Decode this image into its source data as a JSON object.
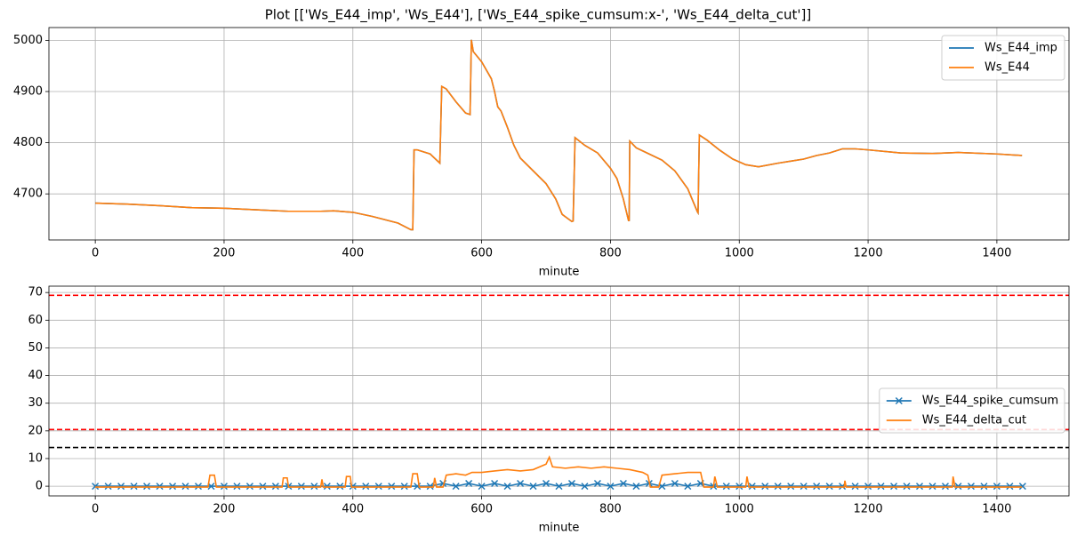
{
  "title": "Plot [['Ws_E44_imp', 'Ws_E44'], ['Ws_E44_spike_cumsum:x-', 'Ws_E44_delta_cut']]",
  "chart_data": [
    {
      "type": "line",
      "xlabel": "minute",
      "grid": true,
      "legend": "upper right",
      "xlim": [
        -72,
        1512
      ],
      "ylim": [
        4610,
        5025
      ],
      "xticks": [
        0,
        200,
        400,
        600,
        800,
        1000,
        1200,
        1400
      ],
      "yticks": [
        4700,
        4800,
        4900,
        5000
      ],
      "x": [
        0,
        50,
        100,
        150,
        200,
        250,
        300,
        350,
        370,
        400,
        430,
        470,
        490,
        493,
        495,
        500,
        520,
        535,
        538,
        545,
        560,
        575,
        582,
        584,
        587,
        600,
        615,
        620,
        625,
        630,
        640,
        650,
        660,
        680,
        700,
        715,
        725,
        740,
        742,
        745,
        750,
        760,
        780,
        800,
        810,
        820,
        828,
        829,
        830,
        840,
        860,
        880,
        900,
        920,
        935,
        936,
        938,
        950,
        970,
        990,
        1010,
        1030,
        1060,
        1080,
        1100,
        1120,
        1140,
        1160,
        1180,
        1200,
        1250,
        1300,
        1340,
        1400,
        1439
      ],
      "series": [
        {
          "name": "Ws_E44_imp",
          "color": "#1f77b4",
          "values": [
            4682,
            4680,
            4677,
            4673,
            4672,
            4669,
            4666,
            4666,
            4667,
            4664,
            4656,
            4643,
            4630,
            4630,
            4786,
            4786,
            4778,
            4760,
            4910,
            4905,
            4880,
            4858,
            4855,
            5001,
            4978,
            4958,
            4925,
            4900,
            4870,
            4862,
            4830,
            4795,
            4770,
            4745,
            4720,
            4690,
            4660,
            4646,
            4647,
            4810,
            4805,
            4795,
            4780,
            4750,
            4730,
            4690,
            4648,
            4648,
            4803,
            4790,
            4778,
            4766,
            4745,
            4710,
            4665,
            4663,
            4815,
            4805,
            4785,
            4768,
            4757,
            4753,
            4760,
            4764,
            4768,
            4775,
            4780,
            4788,
            4788,
            4786,
            4780,
            4779,
            4781,
            4778,
            4775
          ]
        },
        {
          "name": "Ws_E44",
          "color": "#ff7f0e",
          "values": [
            4682,
            4680,
            4677,
            4673,
            4672,
            4669,
            4666,
            4666,
            4667,
            4664,
            4656,
            4643,
            4630,
            4630,
            4786,
            4786,
            4778,
            4760,
            4910,
            4905,
            4880,
            4858,
            4855,
            5001,
            4978,
            4958,
            4925,
            4900,
            4870,
            4862,
            4830,
            4795,
            4770,
            4745,
            4720,
            4690,
            4660,
            4646,
            4647,
            4810,
            4805,
            4795,
            4780,
            4750,
            4730,
            4690,
            4648,
            4648,
            4803,
            4790,
            4778,
            4766,
            4745,
            4710,
            4665,
            4663,
            4815,
            4805,
            4785,
            4768,
            4757,
            4753,
            4760,
            4764,
            4768,
            4775,
            4780,
            4788,
            4788,
            4786,
            4780,
            4779,
            4781,
            4778,
            4775
          ]
        }
      ]
    },
    {
      "type": "line",
      "xlabel": "minute",
      "grid": true,
      "legend": "center right",
      "xlim": [
        -72,
        1512
      ],
      "ylim": [
        -3.5,
        72.3
      ],
      "xticks": [
        0,
        200,
        400,
        600,
        800,
        1000,
        1200,
        1400
      ],
      "yticks": [
        0,
        10,
        20,
        30,
        40,
        50,
        60,
        70
      ],
      "hlines": [
        {
          "value": 69,
          "color": "#ff0000"
        },
        {
          "value": 20.5,
          "color": "#ff0000"
        },
        {
          "value": 14,
          "color": "#000000"
        }
      ],
      "series": [
        {
          "name": "Ws_E44_spike_cumsum",
          "color": "#1f77b4",
          "marker": "x",
          "x": [
            0,
            20,
            40,
            60,
            80,
            100,
            120,
            140,
            160,
            180,
            200,
            220,
            240,
            260,
            280,
            300,
            320,
            340,
            360,
            380,
            400,
            420,
            440,
            460,
            480,
            500,
            520,
            540,
            560,
            580,
            600,
            620,
            640,
            660,
            680,
            700,
            720,
            740,
            760,
            780,
            800,
            820,
            840,
            860,
            880,
            900,
            920,
            940,
            960,
            980,
            1000,
            1020,
            1040,
            1060,
            1080,
            1100,
            1120,
            1140,
            1160,
            1180,
            1200,
            1220,
            1240,
            1260,
            1280,
            1300,
            1320,
            1340,
            1360,
            1380,
            1400,
            1420,
            1440
          ],
          "values": [
            0,
            0,
            0,
            0,
            0,
            0,
            0,
            0,
            0,
            0,
            0,
            0,
            0,
            0,
            0,
            0,
            0,
            0,
            0,
            0,
            0,
            0,
            0,
            0,
            0,
            0,
            0,
            1,
            0,
            1,
            0,
            1,
            0,
            1,
            0,
            1,
            0,
            1,
            0,
            1,
            0,
            1,
            0,
            1,
            0,
            1,
            0,
            1,
            0,
            0,
            0,
            0,
            0,
            0,
            0,
            0,
            0,
            0,
            0,
            0,
            0,
            0,
            0,
            0,
            0,
            0,
            0,
            0,
            0,
            0,
            0,
            0,
            0
          ]
        },
        {
          "name": "Ws_E44_delta_cut",
          "color": "#ff7f0e",
          "x": [
            0,
            175,
            178,
            185,
            188,
            290,
            292,
            298,
            300,
            350,
            352,
            354,
            388,
            390,
            396,
            398,
            490,
            493,
            500,
            503,
            525,
            527,
            530,
            540,
            545,
            560,
            575,
            585,
            600,
            620,
            640,
            660,
            680,
            700,
            705,
            710,
            730,
            750,
            770,
            790,
            810,
            830,
            850,
            858,
            862,
            875,
            880,
            900,
            920,
            940,
            945,
            960,
            962,
            966,
            1010,
            1012,
            1015,
            1163,
            1164,
            1166,
            1331,
            1332,
            1335,
            1439
          ],
          "values": [
            -0.3,
            -0.3,
            4,
            4,
            -0.3,
            -0.3,
            3,
            3,
            -0.3,
            -0.3,
            2.5,
            -0.3,
            -0.3,
            3.5,
            3.5,
            -0.3,
            -0.3,
            4.5,
            4.5,
            -0.3,
            -0.3,
            3,
            -0.3,
            -0.3,
            4,
            4.5,
            4,
            5,
            5,
            5.5,
            6,
            5.5,
            6,
            8,
            10.5,
            7,
            6.5,
            7,
            6.5,
            7,
            6.5,
            6,
            5,
            4,
            -0.3,
            -0.3,
            4,
            4.5,
            5,
            5,
            -0.3,
            -0.3,
            3.5,
            -0.3,
            -0.3,
            3.5,
            -0.3,
            -0.3,
            2,
            -0.3,
            -0.3,
            3.5,
            -0.3,
            -0.3
          ]
        }
      ]
    }
  ]
}
